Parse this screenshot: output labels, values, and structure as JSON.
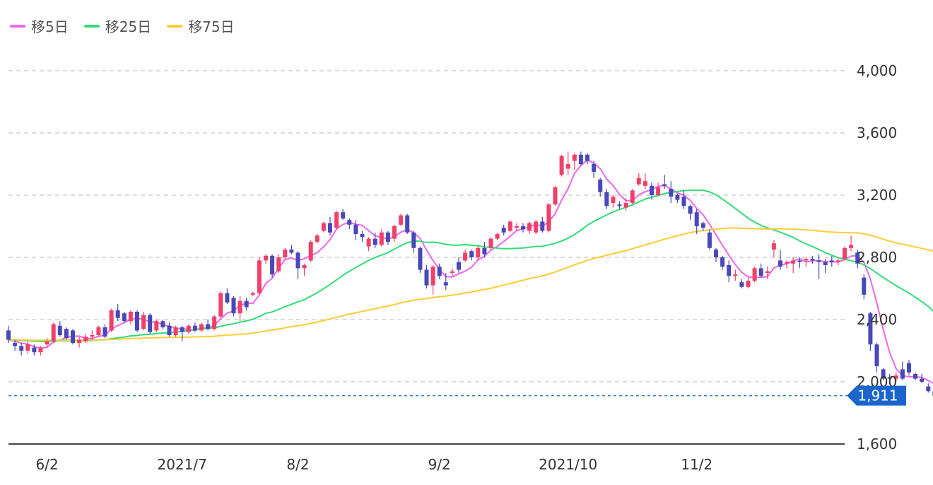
{
  "legend": [
    {
      "label": "移5日",
      "color": "#ee66ee"
    },
    {
      "label": "移25日",
      "color": "#33dd77"
    },
    {
      "label": "移75日",
      "color": "#ffcc33"
    }
  ],
  "current_price_label": "1,911",
  "colors": {
    "up": "#f0406a",
    "down": "#4848b8",
    "ma5": "#ee66ee",
    "ma25": "#33dd77",
    "ma75": "#ffcc33",
    "price_line": "#3377cc",
    "price_tag": "#1a66cc",
    "grid": "#d0d0d0",
    "axis": "#444444"
  },
  "chart_data": {
    "type": "candlestick",
    "ylim": [
      1600,
      4100
    ],
    "yticks": [
      1600,
      2000,
      2400,
      2800,
      3200,
      3600,
      4000
    ],
    "ytick_labels": [
      "1,600",
      "2,000",
      "2,400",
      "2,800",
      "3,200",
      "3,600",
      "4,000"
    ],
    "xticks": [
      {
        "index": 6,
        "label": "6/2"
      },
      {
        "index": 27,
        "label": "2021/7"
      },
      {
        "index": 45,
        "label": "8/2"
      },
      {
        "index": 67,
        "label": "9/2"
      },
      {
        "index": 87,
        "label": "2021/10"
      },
      {
        "index": 107,
        "label": "11/2"
      }
    ],
    "grid": true,
    "last_price": 1911,
    "candles": [
      [
        2330,
        2360,
        2250,
        2270
      ],
      [
        2250,
        2270,
        2200,
        2230
      ],
      [
        2230,
        2250,
        2170,
        2200
      ],
      [
        2200,
        2260,
        2180,
        2240
      ],
      [
        2220,
        2240,
        2170,
        2190
      ],
      [
        2190,
        2230,
        2170,
        2220
      ],
      [
        2240,
        2280,
        2220,
        2260
      ],
      [
        2260,
        2380,
        2250,
        2370
      ],
      [
        2360,
        2390,
        2290,
        2300
      ],
      [
        2340,
        2350,
        2270,
        2280
      ],
      [
        2330,
        2340,
        2240,
        2250
      ],
      [
        2250,
        2290,
        2220,
        2270
      ],
      [
        2260,
        2310,
        2250,
        2290
      ],
      [
        2290,
        2330,
        2270,
        2300
      ],
      [
        2300,
        2360,
        2290,
        2350
      ],
      [
        2350,
        2370,
        2280,
        2290
      ],
      [
        2330,
        2470,
        2320,
        2460
      ],
      [
        2460,
        2500,
        2390,
        2410
      ],
      [
        2440,
        2450,
        2380,
        2390
      ],
      [
        2390,
        2460,
        2370,
        2450
      ],
      [
        2450,
        2460,
        2320,
        2330
      ],
      [
        2340,
        2450,
        2330,
        2430
      ],
      [
        2430,
        2440,
        2310,
        2320
      ],
      [
        2330,
        2400,
        2320,
        2390
      ],
      [
        2390,
        2400,
        2340,
        2350
      ],
      [
        2360,
        2380,
        2290,
        2300
      ],
      [
        2300,
        2360,
        2290,
        2350
      ],
      [
        2350,
        2360,
        2260,
        2320
      ],
      [
        2320,
        2370,
        2310,
        2360
      ],
      [
        2360,
        2380,
        2320,
        2330
      ],
      [
        2330,
        2380,
        2320,
        2370
      ],
      [
        2370,
        2400,
        2330,
        2340
      ],
      [
        2340,
        2430,
        2330,
        2420
      ],
      [
        2420,
        2580,
        2410,
        2570
      ],
      [
        2570,
        2600,
        2500,
        2510
      ],
      [
        2540,
        2550,
        2420,
        2440
      ],
      [
        2440,
        2550,
        2390,
        2520
      ],
      [
        2520,
        2540,
        2460,
        2480
      ],
      [
        2560,
        2580,
        2550,
        2570
      ],
      [
        2570,
        2800,
        2560,
        2780
      ],
      [
        2780,
        2820,
        2760,
        2810
      ],
      [
        2810,
        2820,
        2670,
        2690
      ],
      [
        2710,
        2820,
        2700,
        2800
      ],
      [
        2800,
        2860,
        2790,
        2850
      ],
      [
        2850,
        2880,
        2820,
        2830
      ],
      [
        2830,
        2840,
        2660,
        2730
      ],
      [
        2730,
        2760,
        2680,
        2750
      ],
      [
        2780,
        2910,
        2770,
        2900
      ],
      [
        2900,
        2950,
        2890,
        2940
      ],
      [
        2970,
        3030,
        2960,
        3020
      ],
      [
        3020,
        3060,
        2940,
        2960
      ],
      [
        2990,
        3100,
        2980,
        3090
      ],
      [
        3090,
        3110,
        3040,
        3050
      ],
      [
        3040,
        3050,
        2980,
        3010
      ],
      [
        3010,
        3040,
        2910,
        2950
      ],
      [
        2950,
        2970,
        2900,
        2930
      ],
      [
        2870,
        2930,
        2840,
        2920
      ],
      [
        2920,
        2960,
        2860,
        2880
      ],
      [
        2880,
        2980,
        2870,
        2960
      ],
      [
        2960,
        2970,
        2880,
        2900
      ],
      [
        2920,
        3010,
        2900,
        3000
      ],
      [
        3010,
        3080,
        3000,
        3070
      ],
      [
        3070,
        3080,
        2950,
        2960
      ],
      [
        2960,
        2970,
        2830,
        2860
      ],
      [
        2860,
        2870,
        2700,
        2720
      ],
      [
        2720,
        2750,
        2600,
        2620
      ],
      [
        2620,
        2750,
        2560,
        2740
      ],
      [
        2740,
        2760,
        2660,
        2680
      ],
      [
        2640,
        2700,
        2590,
        2620
      ],
      [
        2700,
        2730,
        2680,
        2710
      ],
      [
        2770,
        2800,
        2700,
        2720
      ],
      [
        2780,
        2850,
        2770,
        2830
      ],
      [
        2840,
        2850,
        2780,
        2800
      ],
      [
        2800,
        2870,
        2780,
        2860
      ],
      [
        2860,
        2900,
        2800,
        2820
      ],
      [
        2860,
        2930,
        2850,
        2920
      ],
      [
        2920,
        2960,
        2910,
        2950
      ],
      [
        2990,
        3010,
        2940,
        2960
      ],
      [
        2970,
        3040,
        2960,
        3030
      ],
      [
        2990,
        3020,
        2970,
        3000
      ],
      [
        3000,
        3020,
        2960,
        2980
      ],
      [
        2970,
        3030,
        2950,
        3020
      ],
      [
        2960,
        3040,
        2950,
        3030
      ],
      [
        3030,
        3060,
        2960,
        2970
      ],
      [
        2970,
        3150,
        2960,
        3140
      ],
      [
        3140,
        3260,
        3130,
        3250
      ],
      [
        3330,
        3460,
        3320,
        3450
      ],
      [
        3370,
        3480,
        3330,
        3400
      ],
      [
        3420,
        3470,
        3360,
        3460
      ],
      [
        3460,
        3480,
        3390,
        3400
      ],
      [
        3460,
        3470,
        3400,
        3420
      ],
      [
        3400,
        3420,
        3310,
        3350
      ],
      [
        3300,
        3310,
        3190,
        3220
      ],
      [
        3220,
        3240,
        3110,
        3130
      ],
      [
        3150,
        3200,
        3120,
        3190
      ],
      [
        3140,
        3160,
        3110,
        3130
      ],
      [
        3120,
        3180,
        3100,
        3150
      ],
      [
        3150,
        3240,
        3140,
        3230
      ],
      [
        3270,
        3340,
        3260,
        3310
      ],
      [
        3260,
        3340,
        3240,
        3290
      ],
      [
        3260,
        3280,
        3170,
        3200
      ],
      [
        3200,
        3280,
        3190,
        3250
      ],
      [
        3270,
        3330,
        3240,
        3260
      ],
      [
        3240,
        3290,
        3150,
        3190
      ],
      [
        3200,
        3210,
        3150,
        3170
      ],
      [
        3190,
        3230,
        3110,
        3130
      ],
      [
        3130,
        3140,
        3040,
        3080
      ],
      [
        3090,
        3110,
        2950,
        3000
      ],
      [
        3020,
        3030,
        2970,
        2990
      ],
      [
        2960,
        2980,
        2850,
        2860
      ],
      [
        2850,
        2860,
        2770,
        2800
      ],
      [
        2800,
        2810,
        2720,
        2740
      ],
      [
        2750,
        2780,
        2640,
        2680
      ],
      [
        2680,
        2720,
        2650,
        2690
      ],
      [
        2640,
        2660,
        2600,
        2610
      ],
      [
        2610,
        2670,
        2600,
        2650
      ],
      [
        2650,
        2740,
        2640,
        2730
      ],
      [
        2730,
        2760,
        2670,
        2680
      ],
      [
        2700,
        2740,
        2660,
        2710
      ],
      [
        2850,
        2910,
        2800,
        2890
      ],
      [
        2780,
        2850,
        2720,
        2740
      ],
      [
        2760,
        2780,
        2730,
        2770
      ],
      [
        2760,
        2800,
        2700,
        2780
      ],
      [
        2780,
        2800,
        2730,
        2770
      ],
      [
        2780,
        2800,
        2740,
        2790
      ],
      [
        2790,
        2810,
        2760,
        2780
      ],
      [
        2780,
        2820,
        2660,
        2770
      ],
      [
        2770,
        2790,
        2700,
        2750
      ],
      [
        2780,
        2810,
        2740,
        2770
      ],
      [
        2770,
        2790,
        2750,
        2780
      ],
      [
        2790,
        2870,
        2780,
        2860
      ],
      [
        2860,
        2940,
        2840,
        2880
      ],
      [
        2830,
        2850,
        2730,
        2760
      ],
      [
        2670,
        2690,
        2530,
        2560
      ],
      [
        2440,
        2450,
        2200,
        2240
      ],
      [
        2240,
        2250,
        2060,
        2100
      ],
      [
        2080,
        2090,
        2010,
        2020
      ],
      [
        2030,
        2050,
        2000,
        2020
      ],
      [
        2020,
        2060,
        2000,
        2040
      ],
      [
        2080,
        2130,
        2010,
        2020
      ],
      [
        2120,
        2140,
        2040,
        2060
      ],
      [
        2050,
        2060,
        2010,
        2020
      ],
      [
        2020,
        2050,
        1990,
        2000
      ],
      [
        1970,
        1990,
        1930,
        1940
      ],
      [
        1940,
        1950,
        1890,
        1911
      ]
    ]
  }
}
